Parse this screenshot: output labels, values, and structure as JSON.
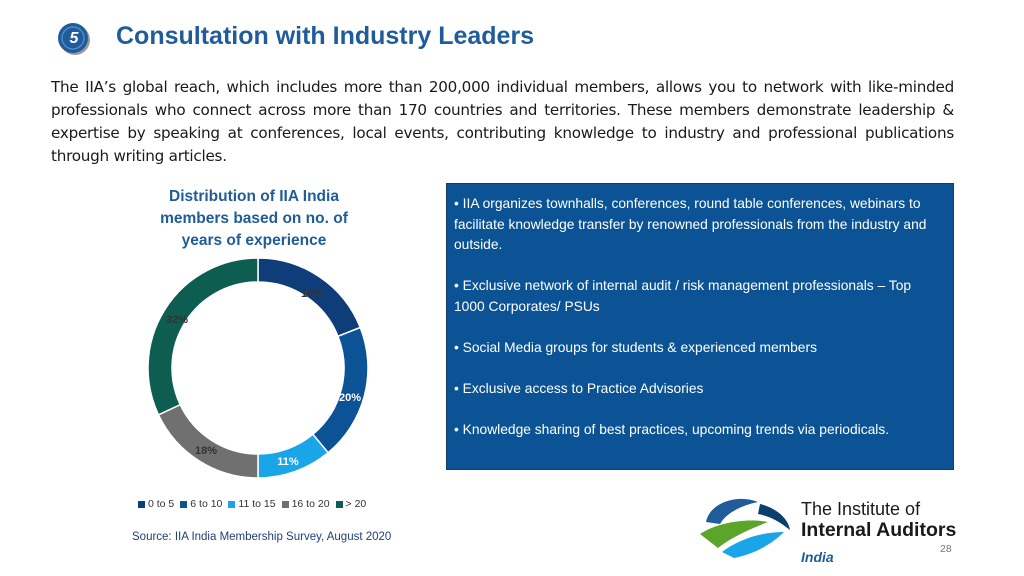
{
  "slide": {
    "number": "5",
    "title": "Consultation with Industry Leaders",
    "intro": "The IIA’s global reach, which includes more than 200,000 individual members, allows you to  network with like-minded professionals who connect across more than 170 countries and  territories. These members demonstrate leadership & expertise by speaking at conferences,  local events, contributing knowledge to industry and professional publications through writing  articles.",
    "page_number": "28"
  },
  "chart_data": {
    "type": "pie",
    "title": "Distribution of IIA India members based on no. of years of experience",
    "categories": [
      "0 to 5",
      "6 to 10",
      "11 to 15",
      "16 to 20",
      "> 20"
    ],
    "values": [
      19,
      20,
      11,
      18,
      32
    ],
    "labels": [
      "19%",
      "20%",
      "11%",
      "18%",
      "32%"
    ],
    "colors": [
      "#0f3d7a",
      "#0b5394",
      "#1aa5e8",
      "#707070",
      "#0d5e50"
    ],
    "legend_position": "bottom",
    "source": "Source: IIA India Membership Survey, August 2020"
  },
  "panel": {
    "bullets": [
      "• IIA organizes townhalls, conferences, round table conferences, webinars to facilitate knowledge transfer by renowned  professionals from the industry and outside.",
      "• Exclusive network of internal audit / risk management  professionals – Top 1000 Corporates/ PSUs",
      "• Social Media groups for students & experienced members",
      "• Exclusive access to Practice Advisories",
      "• Knowledge sharing of best practices, upcoming trends via periodicals."
    ]
  },
  "logo": {
    "line1": "The Institute of",
    "line2": "Internal Auditors",
    "line3": "India"
  }
}
